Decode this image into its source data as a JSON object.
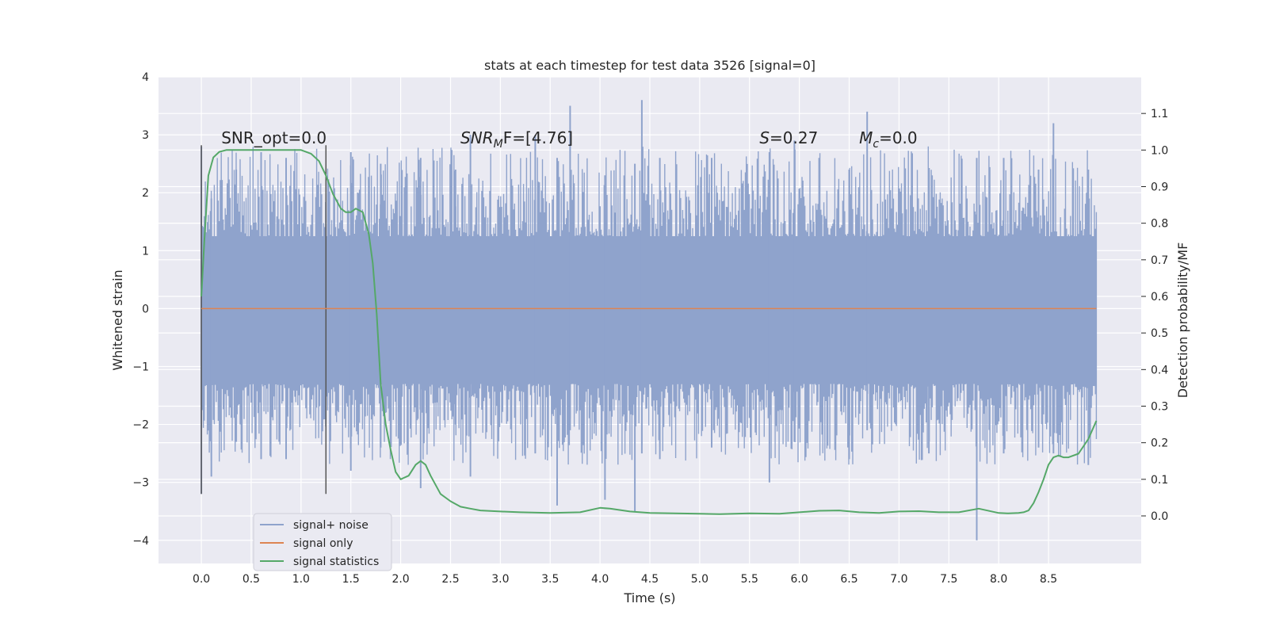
{
  "chart_data": {
    "type": "line",
    "title": "stats at each timestep for test data 3526 [signal=0]",
    "xlabel": "Time (s)",
    "ylabel": "Whitened strain",
    "y2label": "Detection probability/MF",
    "xlim": [
      -0.43,
      9.43
    ],
    "ylim": [
      -4.4,
      4.0
    ],
    "y2lim": [
      -0.13,
      1.2
    ],
    "xticks": [
      "0.0",
      "0.5",
      "1.0",
      "1.5",
      "2.0",
      "2.5",
      "3.0",
      "3.5",
      "4.0",
      "4.5",
      "5.0",
      "5.5",
      "6.0",
      "6.5",
      "7.0",
      "7.5",
      "8.0",
      "8.5"
    ],
    "yticks": [
      "4",
      "3",
      "2",
      "1",
      "0",
      "−1",
      "−2",
      "−3",
      "−4"
    ],
    "y2ticks": [
      "1.1",
      "1.0",
      "0.9",
      "0.8",
      "0.7",
      "0.6",
      "0.5",
      "0.4",
      "0.3",
      "0.2",
      "0.1",
      "0.0"
    ],
    "grid": true,
    "legend_position": "lower-left",
    "annotations": [
      {
        "text": "SNR_opt=0.0",
        "x": 0.2,
        "y": 2.85,
        "italic": false
      },
      {
        "text": "SNR",
        "sub": "M",
        "rest": "F=[4.76]",
        "x": 2.6,
        "y": 2.85,
        "italic": true
      },
      {
        "text": "S",
        "rest": "=0.27",
        "x": 5.6,
        "y": 2.85,
        "italic": true
      },
      {
        "text": "M",
        "sub": "c",
        "rest": "=0.0",
        "x": 6.6,
        "y": 2.85,
        "italic": true
      }
    ],
    "vertical_markers": [
      0.0,
      1.25
    ],
    "series": [
      {
        "name": "signal+ noise",
        "color": "#8fa3cc",
        "kind": "noise-band",
        "x_range": [
          0.0,
          8.98
        ],
        "core_range": [
          -1.3,
          1.25
        ],
        "peaks": [
          [
            0.0,
            2.8,
            -3.2
          ],
          [
            0.1,
            1.9,
            -2.9
          ],
          [
            0.35,
            2.4,
            -2.3
          ],
          [
            0.6,
            2.7,
            -2.6
          ],
          [
            0.85,
            2.6,
            -2.6
          ],
          [
            1.5,
            2.7,
            -2.8
          ],
          [
            1.8,
            2.5,
            -2.4
          ],
          [
            2.2,
            2.6,
            -3.1
          ],
          [
            2.55,
            2.4,
            -2.0
          ],
          [
            2.7,
            3.0,
            -2.9
          ],
          [
            3.35,
            3.0,
            -2.5
          ],
          [
            3.57,
            2.6,
            -3.4
          ],
          [
            3.7,
            3.5,
            -2.1
          ],
          [
            4.05,
            2.3,
            -3.3
          ],
          [
            4.35,
            2.5,
            -3.5
          ],
          [
            4.42,
            3.6,
            -2.5
          ],
          [
            4.6,
            2.6,
            -2.6
          ],
          [
            5.12,
            2.6,
            -2.4
          ],
          [
            5.7,
            2.7,
            -3.0
          ],
          [
            5.95,
            2.9,
            -2.3
          ],
          [
            6.5,
            2.4,
            -2.6
          ],
          [
            6.68,
            3.4,
            -2.1
          ],
          [
            7.3,
            2.4,
            -2.5
          ],
          [
            7.78,
            2.6,
            -4.0
          ],
          [
            8.05,
            2.6,
            -2.5
          ],
          [
            8.4,
            2.4,
            -2.4
          ],
          [
            8.55,
            3.2,
            -2.5
          ],
          [
            8.9,
            2.4,
            -2.7
          ]
        ]
      },
      {
        "name": "signal only",
        "color": "#dd8452",
        "kind": "flat",
        "x": [
          0.0,
          8.98
        ],
        "y": [
          0.0,
          0.0
        ]
      },
      {
        "name": "signal statistics",
        "color": "#55a868",
        "axis": "right",
        "x": [
          0.0,
          0.03,
          0.07,
          0.12,
          0.18,
          0.25,
          0.35,
          0.5,
          0.7,
          0.9,
          1.0,
          1.1,
          1.18,
          1.25,
          1.32,
          1.4,
          1.45,
          1.5,
          1.55,
          1.62,
          1.68,
          1.72,
          1.76,
          1.8,
          1.85,
          1.9,
          1.95,
          2.0,
          2.08,
          2.15,
          2.2,
          2.25,
          2.3,
          2.4,
          2.5,
          2.6,
          2.7,
          2.8,
          3.0,
          3.2,
          3.5,
          3.8,
          4.0,
          4.1,
          4.3,
          4.5,
          5.0,
          5.2,
          5.5,
          5.8,
          6.0,
          6.2,
          6.4,
          6.6,
          6.8,
          7.0,
          7.2,
          7.4,
          7.6,
          7.8,
          8.0,
          8.1,
          8.2,
          8.25,
          8.3,
          8.35,
          8.4,
          8.45,
          8.5,
          8.55,
          8.6,
          8.65,
          8.7,
          8.8,
          8.9,
          8.98
        ],
        "y": [
          0.6,
          0.75,
          0.93,
          0.98,
          0.995,
          1.0,
          1.0,
          1.0,
          1.0,
          1.0,
          1.0,
          0.99,
          0.97,
          0.93,
          0.88,
          0.84,
          0.83,
          0.83,
          0.84,
          0.83,
          0.77,
          0.69,
          0.55,
          0.36,
          0.25,
          0.18,
          0.12,
          0.1,
          0.11,
          0.14,
          0.15,
          0.14,
          0.11,
          0.06,
          0.04,
          0.025,
          0.02,
          0.015,
          0.012,
          0.01,
          0.008,
          0.01,
          0.022,
          0.02,
          0.012,
          0.008,
          0.006,
          0.005,
          0.007,
          0.006,
          0.01,
          0.014,
          0.015,
          0.01,
          0.008,
          0.012,
          0.013,
          0.01,
          0.01,
          0.02,
          0.008,
          0.007,
          0.008,
          0.01,
          0.015,
          0.035,
          0.065,
          0.1,
          0.14,
          0.16,
          0.165,
          0.16,
          0.16,
          0.17,
          0.21,
          0.26
        ]
      }
    ]
  },
  "legend": {
    "items": [
      {
        "label": "signal+ noise",
        "color": "#8fa3cc"
      },
      {
        "label": "signal only",
        "color": "#dd8452"
      },
      {
        "label": "signal statistics",
        "color": "#55a868"
      }
    ]
  }
}
